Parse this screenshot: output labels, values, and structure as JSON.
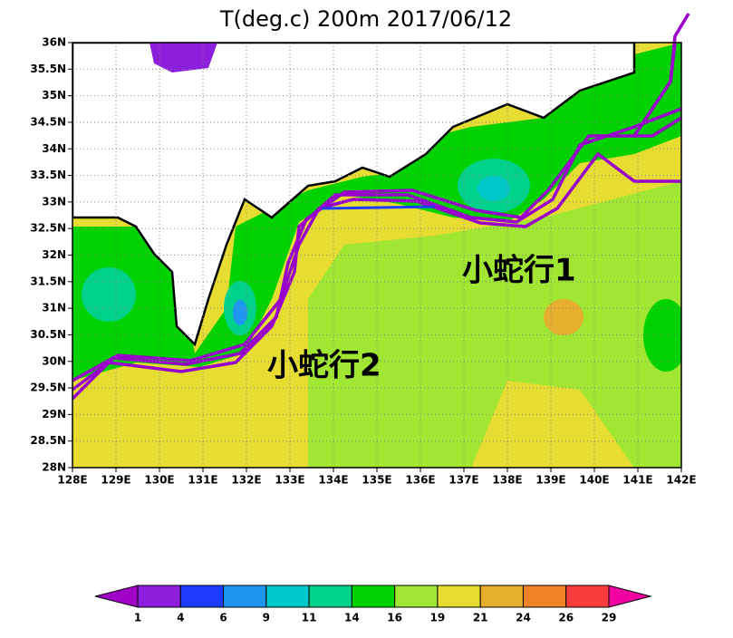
{
  "title": "T(deg.c) 200m 2017/06/12",
  "map": {
    "x_labels": [
      "128E",
      "129E",
      "130E",
      "131E",
      "132E",
      "133E",
      "134E",
      "135E",
      "136E",
      "137E",
      "138E",
      "139E",
      "140E",
      "141E",
      "142E"
    ],
    "y_labels": [
      "28N",
      "28.5N",
      "29N",
      "29.5N",
      "30N",
      "30.5N",
      "31N",
      "31.5N",
      "32N",
      "32.5N",
      "33N",
      "33.5N",
      "34N",
      "34.5N",
      "35N",
      "35.5N",
      "36N"
    ],
    "annotations": [
      "小蛇行1",
      "小蛇行2"
    ]
  },
  "colorbar": {
    "labels": [
      1,
      4,
      6,
      9,
      11,
      14,
      16,
      19,
      21,
      24,
      26,
      29
    ],
    "colors": [
      "#a000c8",
      "#8c1edc",
      "#1e3cff",
      "#1e96f0",
      "#00c8c8",
      "#00d28c",
      "#00d200",
      "#a0e632",
      "#e6dc32",
      "#e6af2d",
      "#f08228",
      "#fa3c3c",
      "#f000a0"
    ]
  }
}
